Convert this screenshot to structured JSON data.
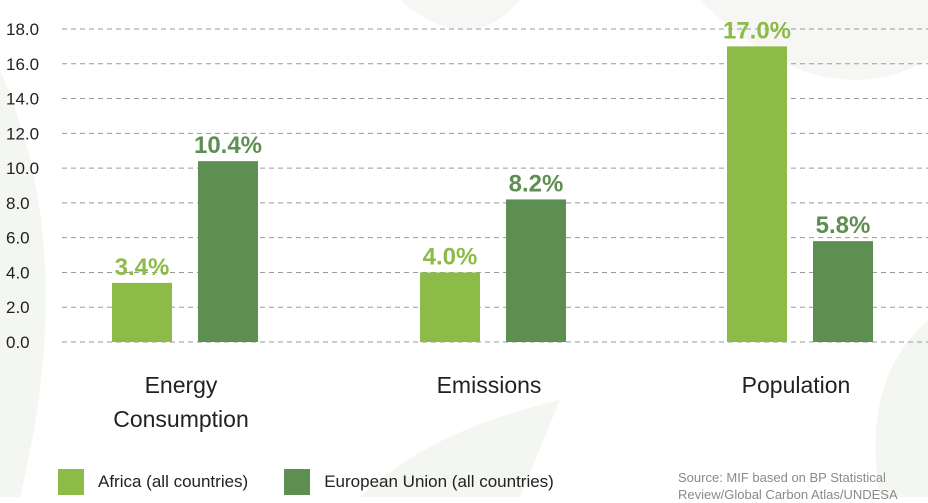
{
  "chart_data": {
    "type": "bar",
    "categories": [
      [
        "Energy",
        "Consumption"
      ],
      [
        "Emissions"
      ],
      [
        "Population"
      ]
    ],
    "series": [
      {
        "name": "Africa (all countries)",
        "color": "#8dbb48",
        "values": [
          3.4,
          4.0,
          17.0
        ],
        "labels": [
          "3.4%",
          "4.0%",
          "17.0%"
        ]
      },
      {
        "name": "European Union (all countries)",
        "color": "#5e8f52",
        "values": [
          10.4,
          8.2,
          5.8
        ],
        "labels": [
          "10.4%",
          "8.2%",
          "5.8%"
        ]
      }
    ],
    "yticks": [
      "0.0",
      "2.0",
      "4.0",
      "6.0",
      "8.0",
      "10.0",
      "12.0",
      "14.0",
      "16.0",
      "18.0"
    ],
    "ylim": [
      0,
      18
    ],
    "grid": true,
    "legend_position": "bottom-left"
  },
  "legend": {
    "africa_label": "Africa (all countries)",
    "eu_label": "European Union (all countries)"
  },
  "source": {
    "line1": "Source: MIF based on BP Statistical",
    "line2": "Review/Global Carbon Atlas/UNDESA"
  }
}
